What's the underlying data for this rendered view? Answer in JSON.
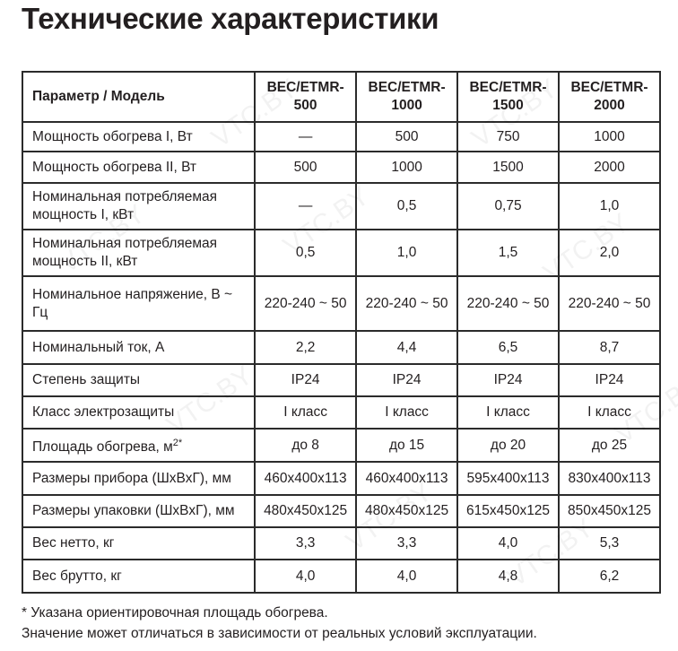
{
  "title": "Технические характеристики",
  "watermark": "VTC.BY",
  "table": {
    "headers": [
      "Параметр / Модель",
      "BEC/ETMR-500",
      "BEC/ETMR-1000",
      "BEC/ETMR-1500",
      "BEC/ETMR-2000"
    ],
    "header_lines": [
      [
        "BEC/ETMR-",
        "500"
      ],
      [
        "BEC/ETMR-",
        "1000"
      ],
      [
        "BEC/ETMR-",
        "1500"
      ],
      [
        "BEC/ETMR-",
        "2000"
      ]
    ],
    "rows": [
      {
        "param": "Мощность обогрева I, Вт",
        "values": [
          "—",
          "500",
          "750",
          "1000"
        ]
      },
      {
        "param": "Мощность обогрева II, Вт",
        "values": [
          "500",
          "1000",
          "1500",
          "2000"
        ]
      },
      {
        "param": "Номинальная потребляемая мощность I, кВт",
        "values": [
          "—",
          "0,5",
          "0,75",
          "1,0"
        ]
      },
      {
        "param": "Номинальная потребляемая мощность II, кВт",
        "values": [
          "0,5",
          "1,0",
          "1,5",
          "2,0"
        ]
      },
      {
        "param": "Номинальное напряжение, В ~ Гц",
        "values": [
          "220-240 ~ 50",
          "220-240 ~ 50",
          "220-240 ~ 50",
          "220-240 ~ 50"
        ]
      },
      {
        "param": "Номинальный ток, А",
        "values": [
          "2,2",
          "4,4",
          "6,5",
          "8,7"
        ]
      },
      {
        "param": "Степень защиты",
        "values": [
          "IP24",
          "IP24",
          "IP24",
          "IP24"
        ]
      },
      {
        "param": "Класс электрозащиты",
        "values": [
          "I класс",
          "I класс",
          "I класс",
          "I класс"
        ]
      },
      {
        "param": "Площадь обогрева, м",
        "param_sup": "2*",
        "values": [
          "до 8",
          "до 15",
          "до 20",
          "до 25"
        ]
      },
      {
        "param": "Размеры прибора (ШхВхГ), мм",
        "values": [
          "460x400x113",
          "460x400x113",
          "595x400x113",
          "830x400x113"
        ]
      },
      {
        "param": "Размеры упаковки (ШхВхГ), мм",
        "values": [
          "480x450x125",
          "480x450x125",
          "615x450x125",
          "850x450x125"
        ]
      },
      {
        "param": "Вес нетто, кг",
        "values": [
          "3,3",
          "3,3",
          "4,0",
          "5,3"
        ]
      },
      {
        "param": "Вес брутто, кг",
        "values": [
          "4,0",
          "4,0",
          "4,8",
          "6,2"
        ]
      }
    ]
  },
  "footnote": [
    "* Указана ориентировочная площадь обогрева.",
    "Значение может отличаться в зависимости от реальных условий эксплуатации."
  ]
}
